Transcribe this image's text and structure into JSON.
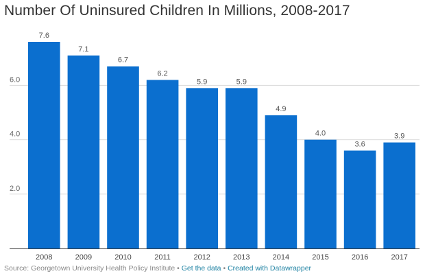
{
  "title": "Number Of Uninsured Children In Millions, 2008-2017",
  "footer": {
    "source": "Source: Georgetown University Health Policy Institute",
    "separator": "•",
    "get_data": "Get the data",
    "created_with": "Created with Datawrapper"
  },
  "colors": {
    "bar": "#0b6fcf",
    "grid": "#d9d9d9",
    "axis_text": "#666666",
    "value_text": "#555555"
  },
  "chart_data": {
    "type": "bar",
    "title": "Number Of Uninsured Children In Millions, 2008-2017",
    "xlabel": "",
    "ylabel": "",
    "categories": [
      "2008",
      "2009",
      "2010",
      "2011",
      "2012",
      "2013",
      "2014",
      "2015",
      "2016",
      "2017"
    ],
    "values": [
      7.6,
      7.1,
      6.7,
      6.2,
      5.9,
      5.9,
      4.9,
      4.0,
      3.6,
      3.9
    ],
    "value_labels": [
      "7.6",
      "7.1",
      "6.7",
      "6.2",
      "5.9",
      "5.9",
      "4.9",
      "4.0",
      "3.6",
      "3.9"
    ],
    "yticks": [
      2.0,
      4.0,
      6.0
    ],
    "ytick_labels": [
      "2.0",
      "4.0",
      "6.0"
    ],
    "ylim": [
      0,
      7.6
    ],
    "grid": true,
    "legend": "none"
  }
}
